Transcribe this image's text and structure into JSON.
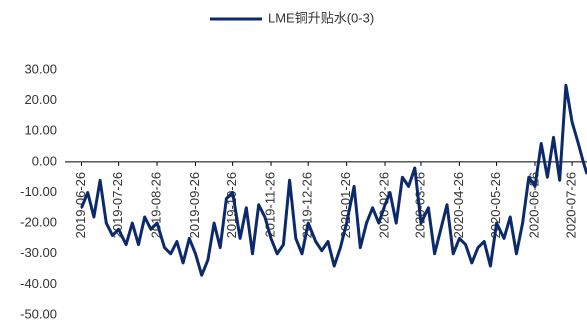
{
  "chart_data": {
    "type": "line",
    "x": [
      "2019-06-26",
      "2019-07-01",
      "2019-07-06",
      "2019-07-11",
      "2019-07-16",
      "2019-07-21",
      "2019-07-26",
      "2019-08-01",
      "2019-08-06",
      "2019-08-11",
      "2019-08-16",
      "2019-08-21",
      "2019-08-26",
      "2019-09-01",
      "2019-09-06",
      "2019-09-11",
      "2019-09-16",
      "2019-09-21",
      "2019-09-26",
      "2019-10-01",
      "2019-10-06",
      "2019-10-11",
      "2019-10-16",
      "2019-10-21",
      "2019-10-26",
      "2019-11-01",
      "2019-11-06",
      "2019-11-11",
      "2019-11-16",
      "2019-11-21",
      "2019-11-26",
      "2019-12-01",
      "2019-12-06",
      "2019-12-11",
      "2019-12-16",
      "2019-12-21",
      "2019-12-26",
      "2020-01-01",
      "2020-01-06",
      "2020-01-11",
      "2020-01-16",
      "2020-01-21",
      "2020-01-26",
      "2020-02-01",
      "2020-02-06",
      "2020-02-11",
      "2020-02-16",
      "2020-02-21",
      "2020-02-26",
      "2020-03-01",
      "2020-03-06",
      "2020-03-11",
      "2020-03-16",
      "2020-03-21",
      "2020-03-26",
      "2020-04-01",
      "2020-04-06",
      "2020-04-11",
      "2020-04-16",
      "2020-04-21",
      "2020-04-26",
      "2020-05-01",
      "2020-05-06",
      "2020-05-11",
      "2020-05-16",
      "2020-05-21",
      "2020-05-26",
      "2020-06-01",
      "2020-06-06",
      "2020-06-11",
      "2020-06-16",
      "2020-06-21",
      "2020-06-26",
      "2020-07-01",
      "2020-07-06",
      "2020-07-11",
      "2020-07-16",
      "2020-07-21",
      "2020-07-26",
      "2020-07-31",
      "2020-08-04",
      "2020-08-07"
    ],
    "series": [
      {
        "name": "LME铜升贴水(0-3)",
        "color": "#0c2a6b",
        "values": [
          -15,
          -10,
          -18,
          -6,
          -20,
          -24,
          -22,
          -27,
          -20,
          -27,
          -18,
          -22,
          -20,
          -28,
          -30,
          -26,
          -33,
          -25,
          -30,
          -37,
          -32,
          -20,
          -28,
          -12,
          -10,
          -25,
          -15,
          -30,
          -14,
          -18,
          -25,
          -30,
          -27,
          -6,
          -25,
          -30,
          -20,
          -26,
          -29,
          -26,
          -34,
          -28,
          -20,
          -8,
          -28,
          -20,
          -15,
          -20,
          -14,
          -10,
          -20,
          -5,
          -8,
          -2,
          -20,
          -15,
          -30,
          -22,
          -14,
          -30,
          -25,
          -27,
          -33,
          -28,
          -26,
          -34,
          -20,
          -25,
          -18,
          -30,
          -20,
          -5,
          -8,
          6,
          -5,
          8,
          -6,
          25,
          13,
          6,
          0,
          -4
        ]
      }
    ],
    "xlim": [
      "2019-06-24",
      "2020-08-07"
    ],
    "xticks": [
      "2019-06-26",
      "2019-07-26",
      "2019-08-26",
      "2019-09-26",
      "2019-10-26",
      "2019-11-26",
      "2019-12-26",
      "2020-01-26",
      "2020-02-26",
      "2020-03-26",
      "2020-04-26",
      "2020-05-26",
      "2020-06-26",
      "2020-07-26"
    ],
    "ylim": [
      -50,
      30
    ],
    "yticks": [
      {
        "value": -50,
        "label": "-50.00"
      },
      {
        "value": -40,
        "label": "-40.00"
      },
      {
        "value": -30,
        "label": "-30.00"
      },
      {
        "value": -20,
        "label": "-20.00"
      },
      {
        "value": -10,
        "label": "-10.00"
      },
      {
        "value": 0,
        "label": "0.00"
      },
      {
        "value": 10,
        "label": "10.00"
      },
      {
        "value": 20,
        "label": "20.00"
      },
      {
        "value": 30,
        "label": "30.00"
      }
    ],
    "legend": "top"
  }
}
